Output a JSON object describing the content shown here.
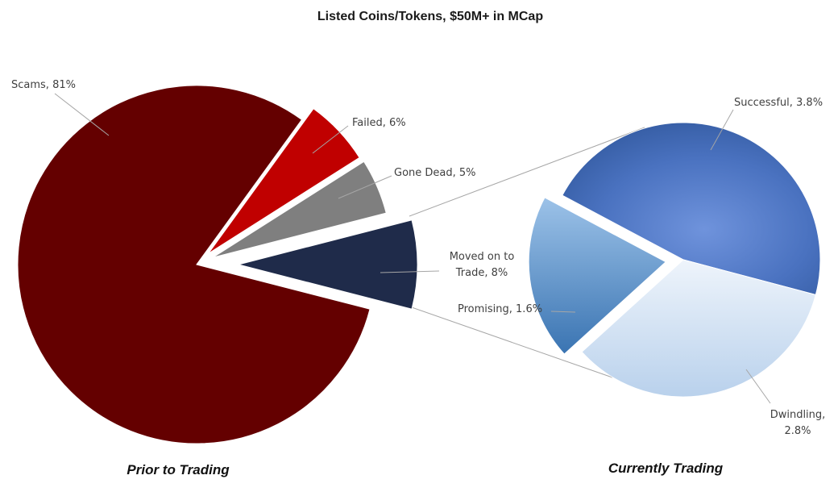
{
  "chart_data": {
    "type": "pie",
    "title": "Listed Coins/Tokens, $50M+ in MCap",
    "charts": [
      {
        "caption": "Prior to Trading",
        "slices": [
          {
            "name": "Scams",
            "value": 81,
            "label": "Scams, 81%",
            "color": "#640000"
          },
          {
            "name": "Failed",
            "value": 6,
            "label": "Failed, 6%",
            "color": "#c00000"
          },
          {
            "name": "Gone Dead",
            "value": 5,
            "label": "Gone Dead, 5%",
            "color": "#7f7f7f"
          },
          {
            "name": "Moved on to Trade",
            "value": 8,
            "label_lines": [
              "Moved on to",
              "Trade, 8%"
            ],
            "color": "#1f2b4a"
          }
        ]
      },
      {
        "caption": "Currently Trading",
        "slices": [
          {
            "name": "Successful",
            "value": 3.8,
            "label": "Successful, 3.8%",
            "color": "#3d63b0"
          },
          {
            "name": "Dwindling",
            "value": 2.8,
            "label_lines": [
              "Dwindling,",
              "2.8%"
            ],
            "color": "#c9dcf0"
          },
          {
            "name": "Promising",
            "value": 1.6,
            "label": "Promising, 1.6%",
            "color": "#5b95cf"
          }
        ]
      }
    ]
  }
}
